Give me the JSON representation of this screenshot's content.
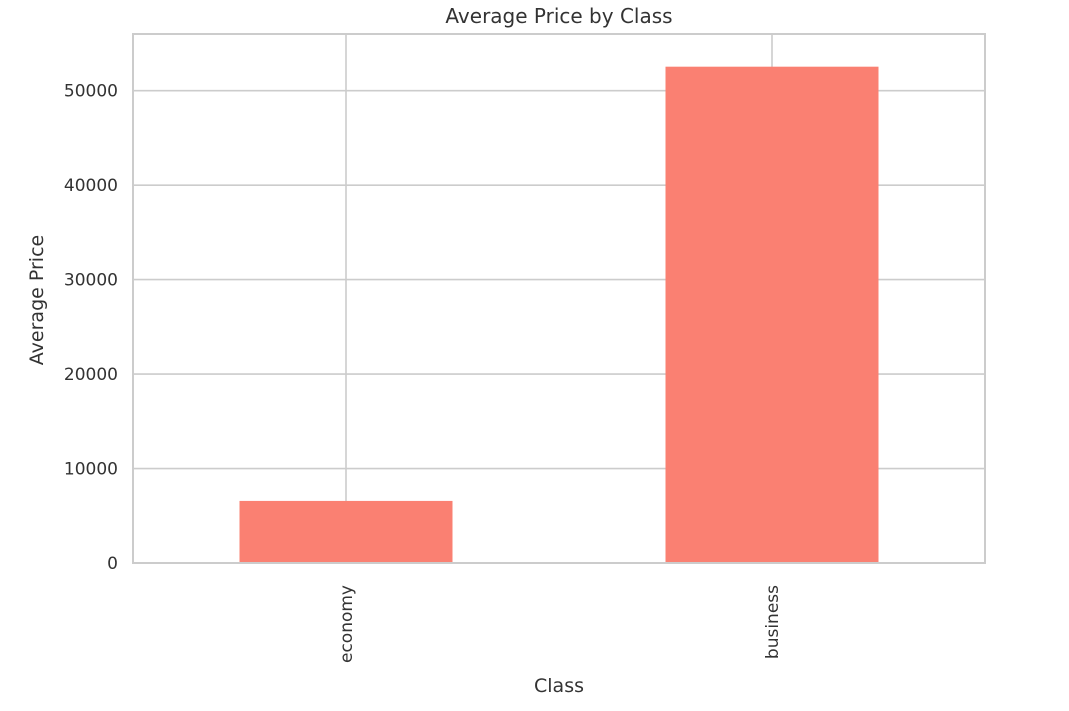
{
  "chart_data": {
    "type": "bar",
    "title": "Average Price by Class",
    "xlabel": "Class",
    "ylabel": "Average Price",
    "categories": [
      "economy",
      "business"
    ],
    "values": [
      6572,
      52540
    ],
    "ylim": [
      0,
      56000
    ],
    "yticks": [
      0,
      10000,
      20000,
      30000,
      40000,
      50000
    ],
    "ytick_labels": [
      "0",
      "10000",
      "20000",
      "30000",
      "40000",
      "50000"
    ],
    "grid": true,
    "bar_color": "#fa8072",
    "grid_color": "#cccccc",
    "text_color": "#333333"
  }
}
